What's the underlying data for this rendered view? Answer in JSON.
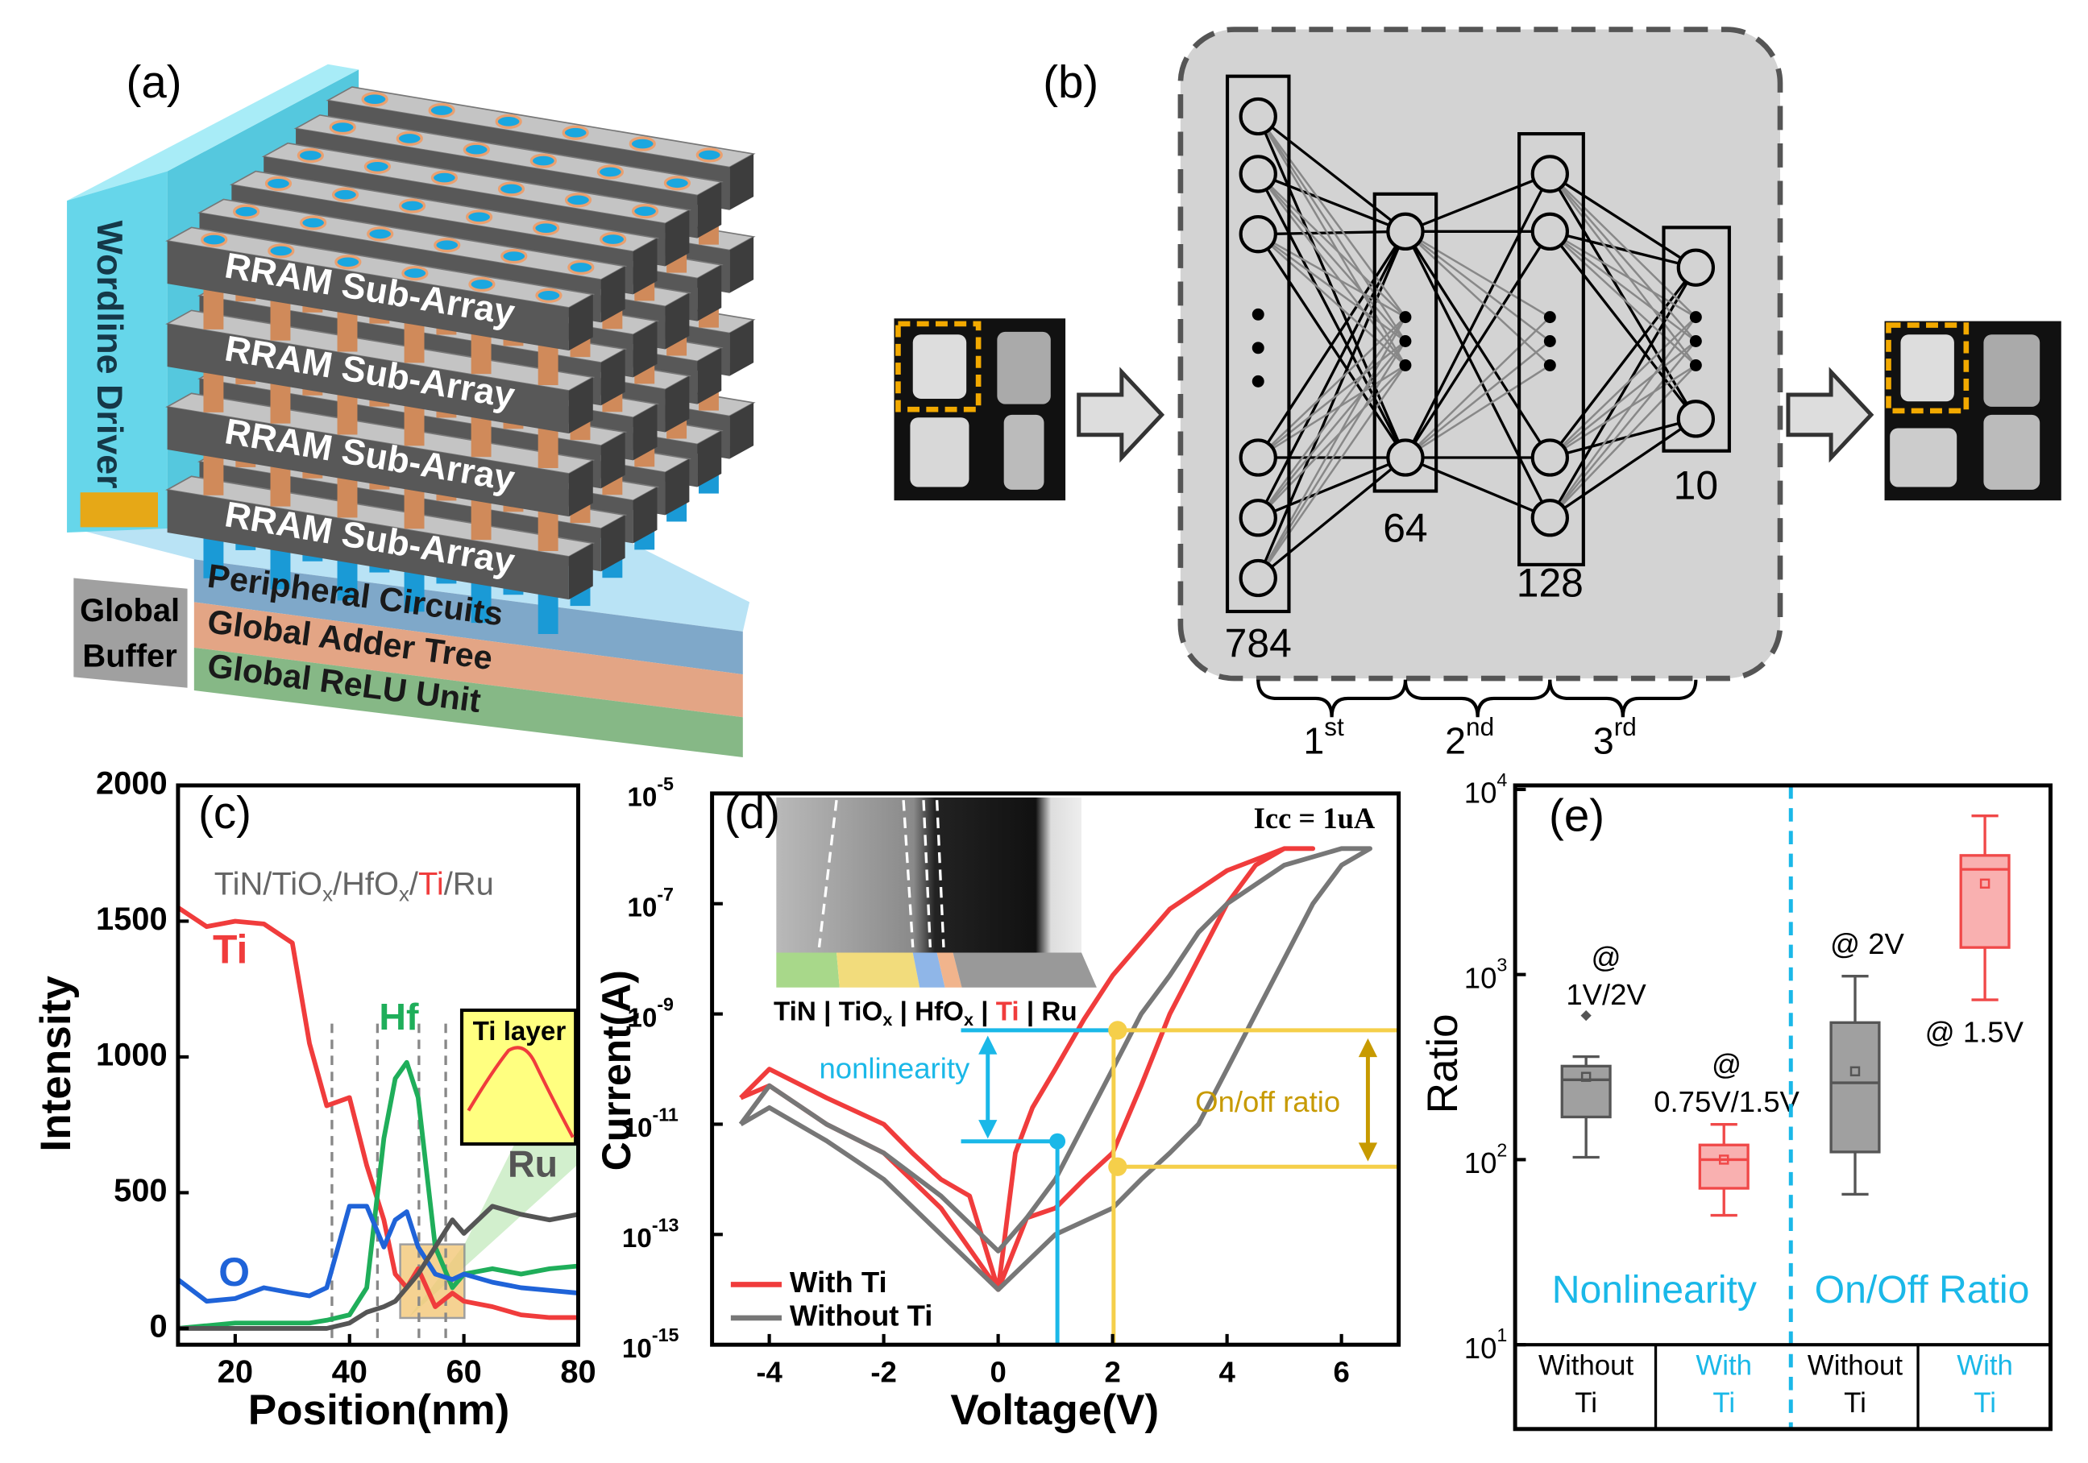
{
  "panel_a": {
    "label": "(a)",
    "wordline": "Wordline Driver",
    "subarrays": [
      "RRAM Sub-Array",
      "RRAM Sub-Array",
      "RRAM Sub-Array",
      "RRAM Sub-Array"
    ],
    "layers": [
      "Peripheral Circuits",
      "Global Adder Tree",
      "Global ReLU Unit"
    ],
    "buffer": [
      "Global",
      "Buffer"
    ]
  },
  "panel_b": {
    "label": "(b)",
    "layer_sizes": [
      784,
      64,
      128,
      10
    ],
    "stages": [
      {
        "base": "1",
        "sup": "st"
      },
      {
        "base": "2",
        "sup": "nd"
      },
      {
        "base": "3",
        "sup": "rd"
      }
    ]
  },
  "chart_data": [
    {
      "type": "line",
      "label": "(c)",
      "xlabel": "Position(nm)",
      "ylabel": "Intensity",
      "stack": [
        "TiN/TiO",
        "x",
        "/HfO",
        "x",
        "/",
        "Ti",
        "/Ru"
      ],
      "inset": "Ti layer",
      "x": [
        10,
        15,
        20,
        25,
        30,
        33,
        36,
        40,
        43,
        46,
        48,
        50,
        52,
        55,
        58,
        60,
        65,
        70,
        75,
        80
      ],
      "xlim": [
        10,
        80
      ],
      "xticks": [
        20,
        40,
        60,
        80
      ],
      "ylim": [
        -60,
        2000
      ],
      "yticks": [
        0,
        500,
        1000,
        1500,
        2000
      ],
      "series": [
        {
          "name": "Ti",
          "color": "#f03c3c",
          "values": [
            1550,
            1480,
            1500,
            1490,
            1420,
            1050,
            820,
            850,
            600,
            400,
            200,
            150,
            220,
            80,
            130,
            100,
            80,
            50,
            40,
            40
          ]
        },
        {
          "name": "Hf",
          "color": "#1fae5a",
          "values": [
            0,
            10,
            20,
            20,
            20,
            20,
            30,
            50,
            150,
            700,
            920,
            980,
            850,
            300,
            150,
            200,
            220,
            200,
            220,
            230
          ]
        },
        {
          "name": "O",
          "color": "#1f63d8",
          "values": [
            180,
            100,
            110,
            150,
            130,
            120,
            150,
            450,
            450,
            300,
            400,
            430,
            300,
            200,
            180,
            200,
            170,
            150,
            140,
            130
          ]
        },
        {
          "name": "Ru",
          "color": "#555555",
          "values": [
            0,
            0,
            0,
            0,
            0,
            0,
            0,
            20,
            60,
            80,
            100,
            150,
            200,
            300,
            400,
            350,
            450,
            420,
            400,
            420
          ]
        }
      ]
    },
    {
      "type": "line",
      "label": "(d)",
      "xlabel": "Voltage(V)",
      "ylabel": "Current(A)",
      "log_y": true,
      "xlim": [
        -5,
        7
      ],
      "xticks": [
        -4,
        -2,
        0,
        2,
        4,
        6
      ],
      "ylim": [
        1e-15,
        1e-05
      ],
      "yticks": [
        {
          "value": 1e-15,
          "label": "10",
          "sup": "-15"
        },
        {
          "value": 1e-13,
          "label": "10",
          "sup": "-13"
        },
        {
          "value": 1e-11,
          "label": "10",
          "sup": "-11"
        },
        {
          "value": 1e-09,
          "label": "10",
          "sup": "-9"
        },
        {
          "value": 1e-07,
          "label": "10",
          "sup": "-7"
        },
        {
          "value": 1e-05,
          "label": "10",
          "sup": "-5"
        }
      ],
      "annotations": {
        "icc": "Icc = 1uA",
        "nonlinearity": "nonlinearity",
        "onoff": "On/off ratio"
      },
      "inset_stack": [
        "TiN | TiO",
        "x",
        " | HfO",
        "x",
        " | ",
        "Ti",
        " | Ru"
      ],
      "series": [
        {
          "name": "With Ti",
          "color": "#f03c3c",
          "x": [
            -4.5,
            -4,
            -3,
            -2,
            -1.5,
            -1,
            -0.5,
            0,
            0.3,
            0.6,
            1,
            1.5,
            2,
            2.5,
            3,
            4,
            5,
            5.5,
            5,
            4.5,
            4,
            3.5,
            3,
            2.5,
            2,
            1.5,
            1,
            0.5,
            0,
            -1,
            -2,
            -3,
            -4,
            -4.5
          ],
          "values": [
            3e-11,
            1e-10,
            3e-11,
            1e-11,
            3e-12,
            1e-12,
            5e-13,
            1e-14,
            3e-12,
            2e-11,
            1e-10,
            8e-10,
            5e-09,
            2e-08,
            8e-08,
            4e-07,
            1e-06,
            1e-06,
            1e-06,
            5e-07,
            1e-07,
            1e-08,
            1e-09,
            5e-11,
            3e-12,
            1e-12,
            3e-13,
            2e-13,
            1e-14,
            3e-13,
            3e-12,
            1e-11,
            5e-11,
            3e-11
          ]
        },
        {
          "name": "Without Ti",
          "color": "#777777",
          "x": [
            -4.5,
            -4,
            -3,
            -2,
            -1,
            0,
            0.5,
            1,
            1.5,
            2,
            2.5,
            3,
            3.5,
            4,
            5,
            6,
            6.5,
            6,
            5.5,
            5,
            4.5,
            4,
            3.5,
            3,
            2.5,
            2,
            1,
            0,
            -1,
            -2,
            -3,
            -4,
            -4.5
          ],
          "values": [
            1e-11,
            5e-11,
            1e-11,
            3e-12,
            5e-13,
            5e-14,
            2e-13,
            1e-12,
            1e-11,
            1e-10,
            1e-09,
            5e-09,
            3e-08,
            1e-07,
            5e-07,
            1e-06,
            1e-06,
            5e-07,
            1e-07,
            1e-08,
            1e-09,
            1e-10,
            1e-11,
            3e-12,
            1e-12,
            3e-13,
            1e-13,
            1e-14,
            1e-13,
            1e-12,
            5e-12,
            2e-11,
            1e-11
          ]
        }
      ]
    },
    {
      "type": "box",
      "label": "(e)",
      "ylabel": "Ratio",
      "log_y": true,
      "ylim": [
        10,
        10000
      ],
      "yticks": [
        {
          "value": 10,
          "label": "10",
          "sup": "1"
        },
        {
          "value": 100,
          "label": "10",
          "sup": "2"
        },
        {
          "value": 1000,
          "label": "10",
          "sup": "3"
        },
        {
          "value": 10000,
          "label": "10",
          "sup": "4"
        }
      ],
      "categories": [
        [
          "Without",
          "Ti"
        ],
        [
          "With",
          "Ti"
        ],
        [
          "Without",
          "Ti"
        ],
        [
          "With",
          "Ti"
        ]
      ],
      "category_colors": [
        "#000000",
        "#1ab8e8",
        "#000000",
        "#1ab8e8"
      ],
      "groups": [
        "Nonlinearity",
        "On/Off Ratio"
      ],
      "group_color": "#1ab8e8",
      "boxes": [
        {
          "low": 103,
          "q1": 170,
          "median": 270,
          "q3": 320,
          "high": 360,
          "mean": 280,
          "outliers": [
            600
          ],
          "color": "#555555",
          "fill": "#a0a0a0"
        },
        {
          "low": 50,
          "q1": 70,
          "median": 100,
          "q3": 120,
          "high": 155,
          "mean": 100,
          "outliers": [],
          "color": "#f04848",
          "fill": "#f9b0b0"
        },
        {
          "low": 65,
          "q1": 110,
          "median": 260,
          "q3": 550,
          "high": 980,
          "mean": 300,
          "outliers": [],
          "color": "#555555",
          "fill": "#a0a0a0"
        },
        {
          "low": 730,
          "q1": 1400,
          "median": 3700,
          "q3": 4400,
          "high": 7200,
          "mean": 3100,
          "outliers": [],
          "color": "#f04848",
          "fill": "#f9b0b0"
        }
      ],
      "annotations": [
        "@",
        "1V/2V",
        "@",
        "0.75V/1.5V",
        "@ 2V",
        "@ 1.5V"
      ]
    }
  ]
}
